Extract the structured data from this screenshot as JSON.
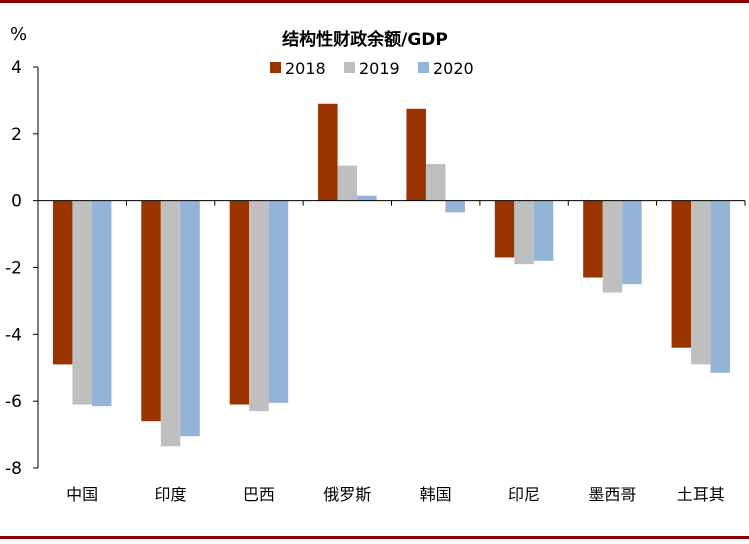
{
  "chart_data": {
    "type": "bar",
    "title": "结构性财政余额/GDP",
    "ylabel": "%",
    "ylim": [
      -8,
      4
    ],
    "yticks": [
      4,
      2,
      0,
      -2,
      -4,
      -6,
      -8
    ],
    "categories": [
      "中国",
      "印度",
      "巴西",
      "俄罗斯",
      "韩国",
      "印尼",
      "墨西哥",
      "土耳其"
    ],
    "series": [
      {
        "name": "2018",
        "color": "#993300",
        "values": [
          -4.9,
          -6.6,
          -6.1,
          2.9,
          2.75,
          -1.7,
          -2.3,
          -4.4
        ]
      },
      {
        "name": "2019",
        "color": "#BFBFBF",
        "values": [
          -6.1,
          -7.35,
          -6.3,
          1.05,
          1.1,
          -1.9,
          -2.75,
          -4.9
        ]
      },
      {
        "name": "2020",
        "color": "#95B3D7",
        "values": [
          -6.15,
          -7.05,
          -6.05,
          0.15,
          -0.35,
          -1.8,
          -2.5,
          -5.15
        ]
      }
    ],
    "legend_position": "top-center",
    "grid": false
  },
  "colors": {
    "frame_rule": "#8B0000",
    "axis": "#000000"
  }
}
